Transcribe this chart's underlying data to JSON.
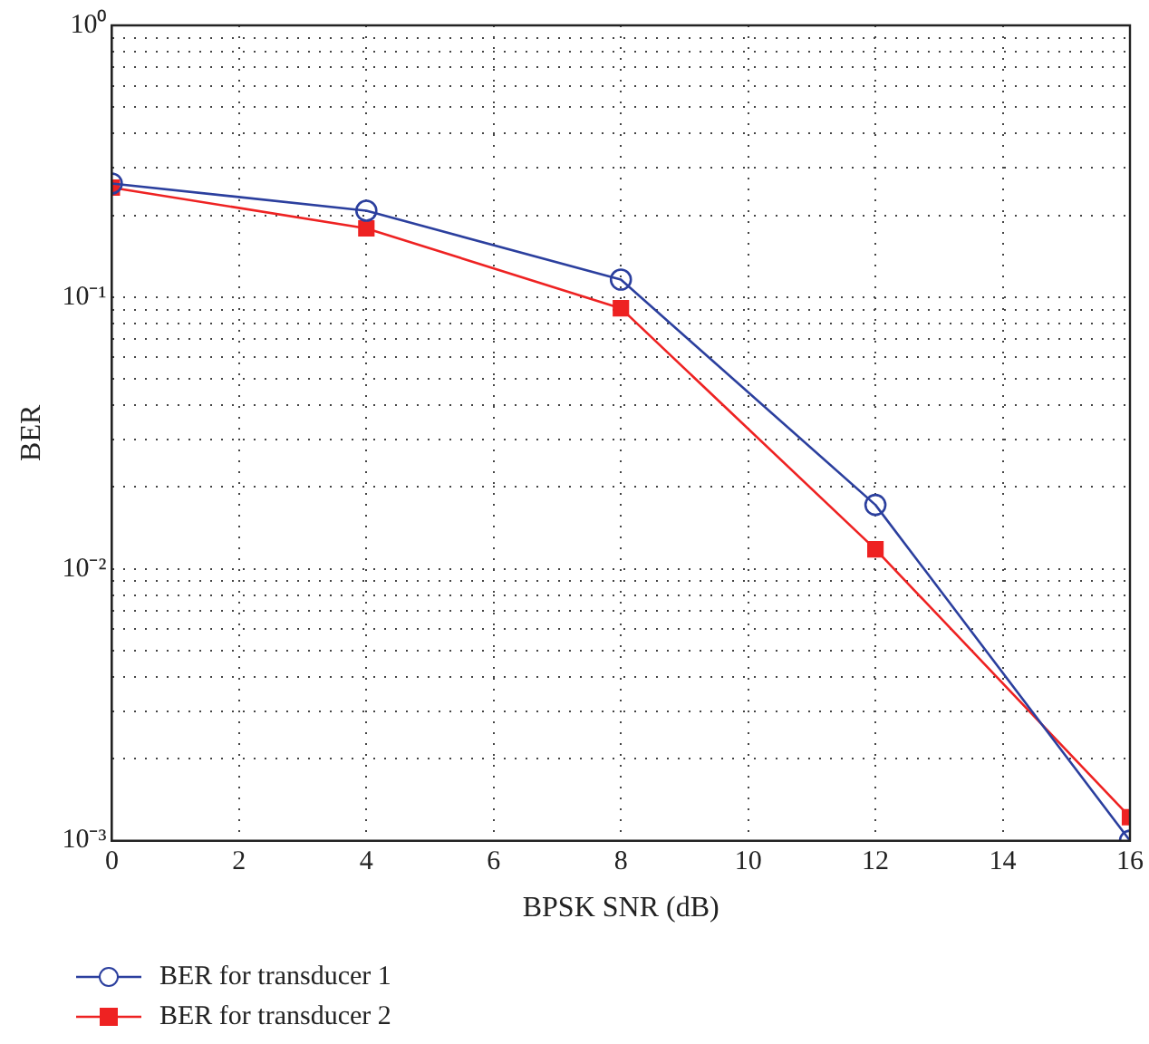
{
  "chart_data": {
    "type": "line",
    "xlabel": "BPSK SNR (dB)",
    "ylabel": "BER",
    "x": [
      0,
      4,
      8,
      12,
      16
    ],
    "series": [
      {
        "name": "BER for transducer 1",
        "color": "#2b3f9e",
        "marker": "circle",
        "values": [
          0.262,
          0.208,
          0.116,
          0.0172,
          0.001
        ]
      },
      {
        "name": "BER for transducer 2",
        "color": "#ee2222",
        "marker": "square",
        "values": [
          0.253,
          0.179,
          0.091,
          0.0118,
          0.00122
        ]
      }
    ],
    "log": "y",
    "xlim": [
      0,
      16
    ],
    "xticks": [
      0,
      2,
      4,
      6,
      8,
      10,
      12,
      14,
      16
    ],
    "ylim": [
      0.001,
      1
    ],
    "yticks": [
      {
        "value": 0.001,
        "label": "10⁻³"
      },
      {
        "value": 0.002,
        "label": null
      },
      {
        "value": 0.003,
        "label": null
      },
      {
        "value": 0.004,
        "label": null
      },
      {
        "value": 0.005,
        "label": null
      },
      {
        "value": 0.006,
        "label": null
      },
      {
        "value": 0.007,
        "label": null
      },
      {
        "value": 0.008,
        "label": null
      },
      {
        "value": 0.009,
        "label": null
      },
      {
        "value": 0.01,
        "label": "10⁻²"
      },
      {
        "value": 0.02,
        "label": null
      },
      {
        "value": 0.03,
        "label": null
      },
      {
        "value": 0.04,
        "label": null
      },
      {
        "value": 0.05,
        "label": null
      },
      {
        "value": 0.06,
        "label": null
      },
      {
        "value": 0.07,
        "label": null
      },
      {
        "value": 0.08,
        "label": null
      },
      {
        "value": 0.09,
        "label": null
      },
      {
        "value": 0.1,
        "label": "10⁻¹"
      },
      {
        "value": 0.2,
        "label": null
      },
      {
        "value": 0.3,
        "label": null
      },
      {
        "value": 0.4,
        "label": null
      },
      {
        "value": 0.5,
        "label": null
      },
      {
        "value": 0.6,
        "label": null
      },
      {
        "value": 0.7,
        "label": null
      },
      {
        "value": 0.8,
        "label": null
      },
      {
        "value": 0.9,
        "label": null
      },
      {
        "value": 1,
        "label": "10⁰"
      }
    ],
    "grid": true,
    "legend": "bottom",
    "line_style": "solid"
  }
}
